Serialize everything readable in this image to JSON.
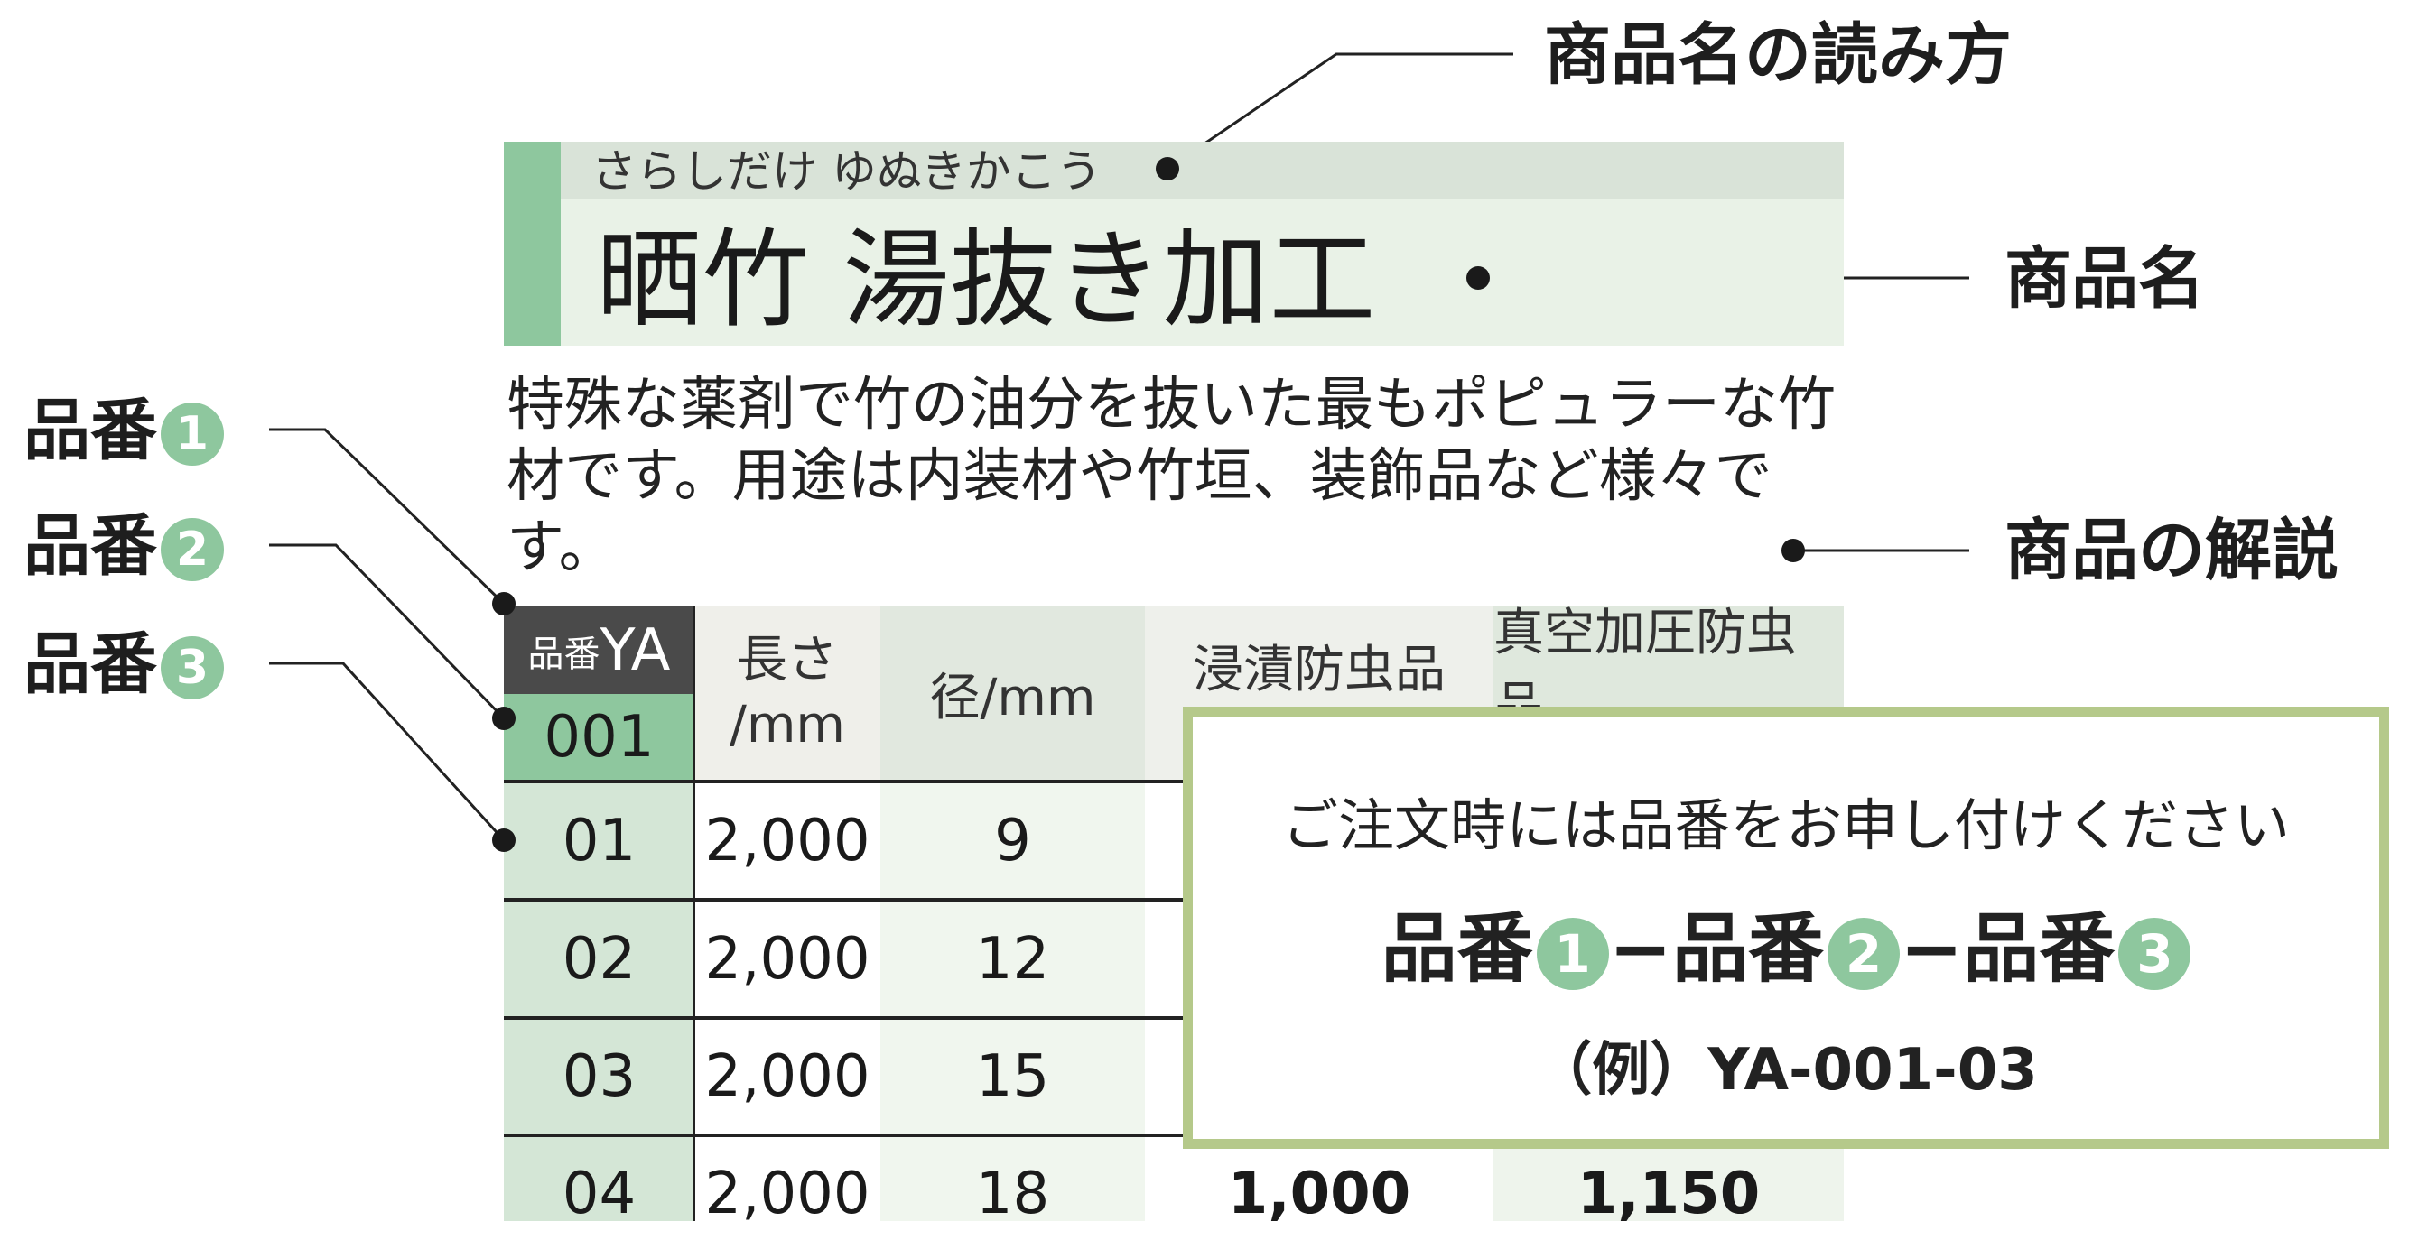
{
  "product": {
    "reading": "さらしだけ ゆぬきかこう",
    "name": "晒竹 湯抜き加工",
    "description": "特殊な薬剤で竹の油分を抜いた最もポピュラーな竹材です。用途は内装材や竹垣、装飾品など様々です。"
  },
  "annotations": {
    "reading_label": "商品名の読み方",
    "name_label": "商品名",
    "description_label": "商品の解説",
    "part_labels": [
      {
        "text": "品番",
        "num": "1"
      },
      {
        "text": "品番",
        "num": "2"
      },
      {
        "text": "品番",
        "num": "3"
      }
    ]
  },
  "table": {
    "code_prefix_label": "品番",
    "code_prefix": "YA",
    "code_middle": "001",
    "headers": {
      "length": "長さ",
      "length_unit": "/mm",
      "diameter": "径/mm",
      "dip": "浸漬防虫品",
      "vacuum": "真空加圧防虫品"
    },
    "rows": [
      {
        "code": "01",
        "length": "2,000",
        "diameter": "9",
        "dip": "",
        "vacuum": ""
      },
      {
        "code": "02",
        "length": "2,000",
        "diameter": "12",
        "dip": "",
        "vacuum": ""
      },
      {
        "code": "03",
        "length": "2,000",
        "diameter": "15",
        "dip": "",
        "vacuum": ""
      },
      {
        "code": "04",
        "length": "2,000",
        "diameter": "18",
        "dip": "1,000",
        "vacuum": "1,150"
      }
    ]
  },
  "callout": {
    "instruction": "ご注文時には品番をお申し付けください",
    "part": "品番",
    "nums": [
      "1",
      "2",
      "3"
    ],
    "separator": "−",
    "example": "（例）YA-001-03"
  },
  "colors": {
    "accent_green": "#8ec79e",
    "callout_border": "#b5c98a",
    "header_dark": "#4a4a4a"
  }
}
